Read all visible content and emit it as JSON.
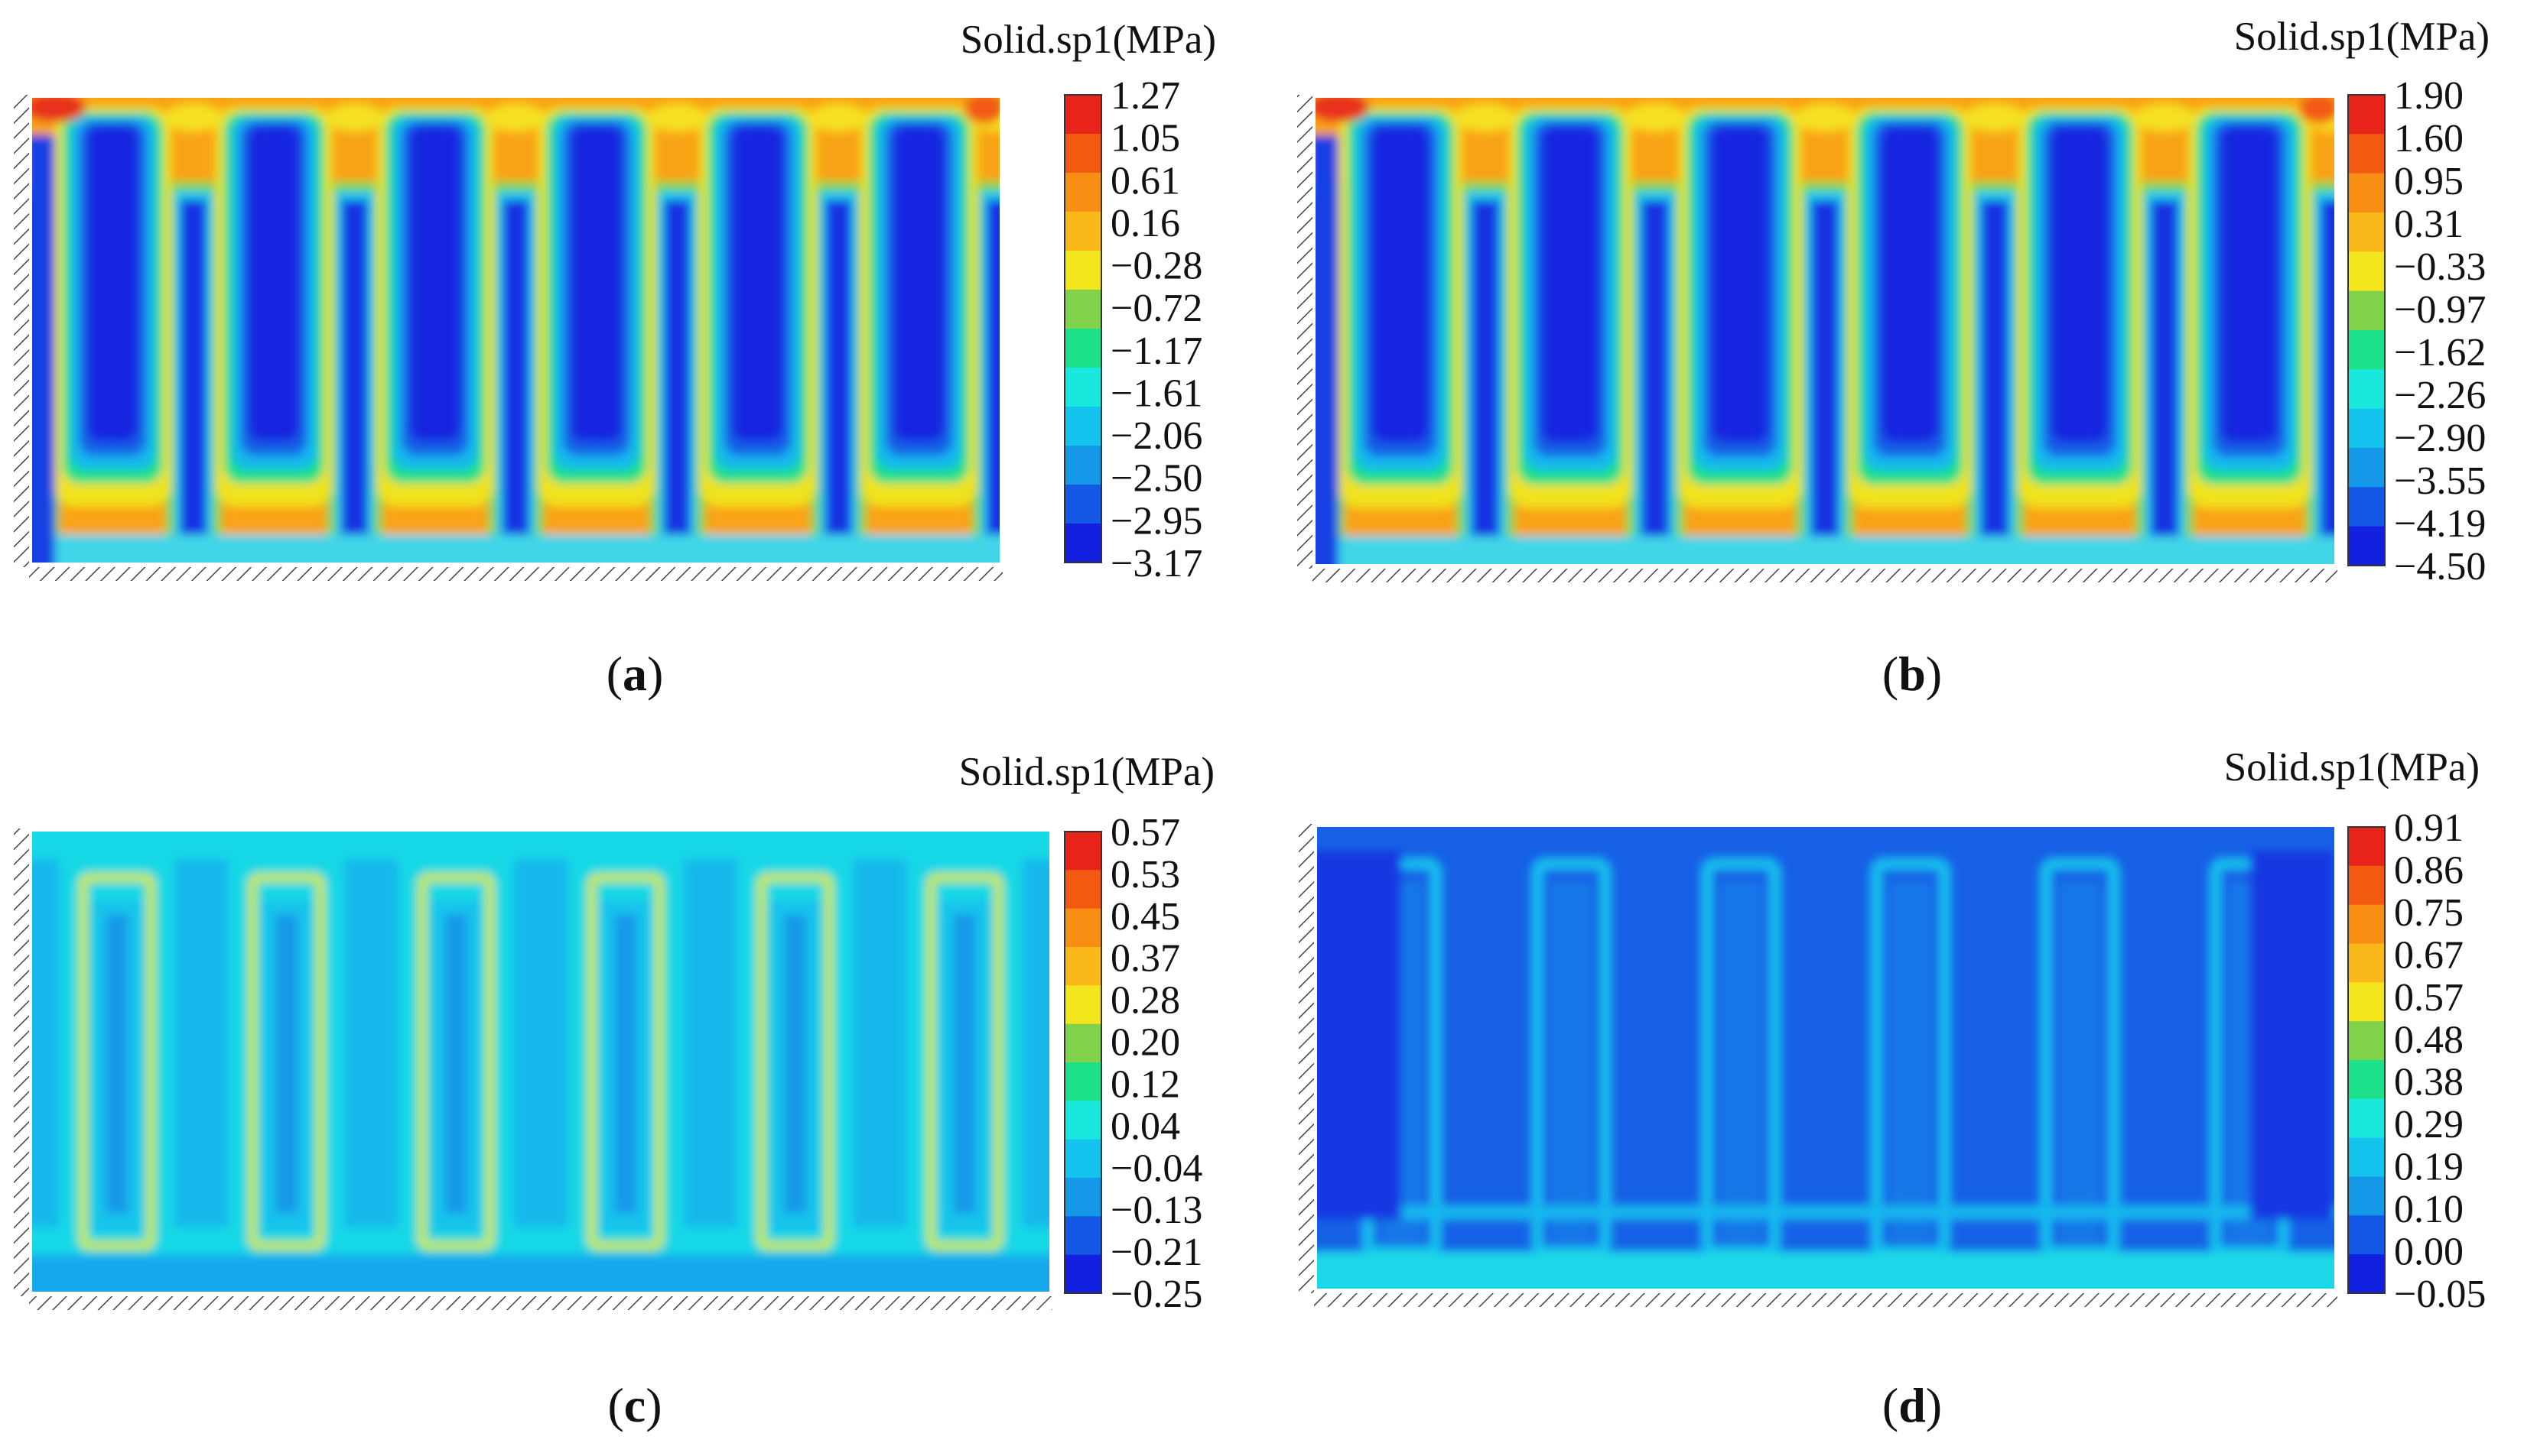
{
  "chart_data": [
    {
      "type": "heatmap",
      "panel_label": "a",
      "colorbar_title": "Solid.sp1(MPa)",
      "levels": [
        "1.27",
        "1.05",
        "0.61",
        "0.16",
        "−0.28",
        "−0.72",
        "−1.17",
        "−1.61",
        "−2.06",
        "−2.50",
        "−2.95",
        "−3.17"
      ],
      "range": [
        -3.17,
        1.27
      ],
      "pattern": "strong"
    },
    {
      "type": "heatmap",
      "panel_label": "b",
      "colorbar_title": "Solid.sp1(MPa)",
      "levels": [
        "1.90",
        "1.60",
        "0.95",
        "0.31",
        "−0.33",
        "−0.97",
        "−1.62",
        "−2.26",
        "−2.90",
        "−3.55",
        "−4.19",
        "−4.50"
      ],
      "range": [
        -4.5,
        1.9
      ],
      "pattern": "strong"
    },
    {
      "type": "heatmap",
      "panel_label": "c",
      "colorbar_title": "Solid.sp1(MPa)",
      "levels": [
        "0.57",
        "0.53",
        "0.45",
        "0.37",
        "0.28",
        "0.20",
        "0.12",
        "0.04",
        "−0.04",
        "−0.13",
        "−0.21",
        "−0.25"
      ],
      "range": [
        -0.25,
        0.57
      ],
      "pattern": "mild"
    },
    {
      "type": "heatmap",
      "panel_label": "d",
      "colorbar_title": "Solid.sp1(MPa)",
      "levels": [
        "0.91",
        "0.86",
        "0.75",
        "0.67",
        "0.57",
        "0.48",
        "0.38",
        "0.29",
        "0.19",
        "0.10",
        "0.00",
        "−0.05"
      ],
      "range": [
        -0.05,
        0.91
      ],
      "pattern": "low"
    }
  ],
  "colors": {
    "colorbar": [
      "#e8241a",
      "#f25a12",
      "#f98e14",
      "#fbb81a",
      "#f3e61c",
      "#7fd24a",
      "#1de08a",
      "#19e8df",
      "#14c4ee",
      "#1598e8",
      "#1458e6",
      "#1320e0"
    ]
  }
}
